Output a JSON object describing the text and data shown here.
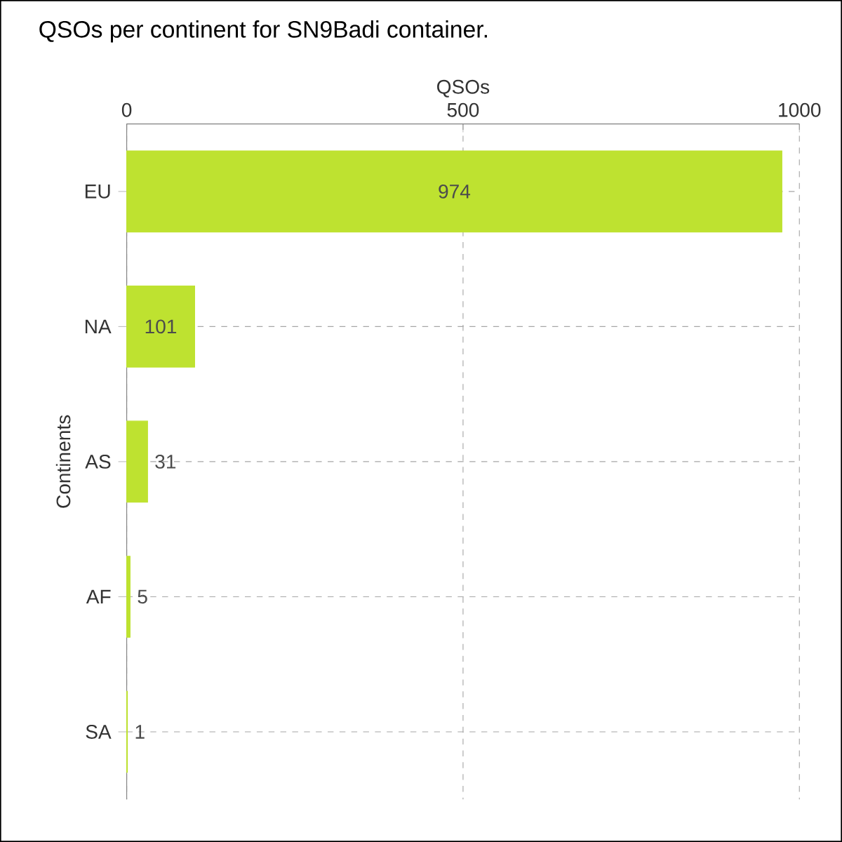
{
  "chart_data": {
    "type": "bar",
    "orientation": "horizontal",
    "title": "QSOs per continent for SN9Badi container.",
    "xlabel": "QSOs",
    "ylabel": "Continents",
    "categories": [
      "EU",
      "NA",
      "AS",
      "AF",
      "SA"
    ],
    "values": [
      974,
      101,
      31,
      5,
      1
    ],
    "color": "#bee230",
    "xlim": [
      0,
      1000
    ],
    "xticks": [
      0,
      500,
      1000
    ],
    "grid": true,
    "data_labels": true
  }
}
